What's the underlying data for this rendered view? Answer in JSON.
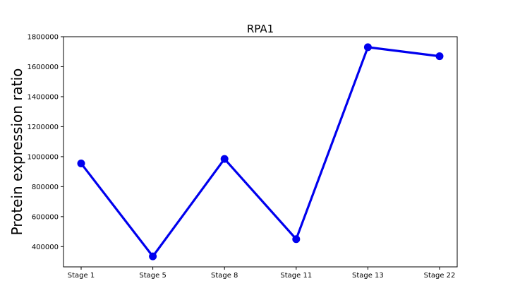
{
  "chart_data": {
    "type": "line",
    "title": "RPA1",
    "xlabel": "",
    "ylabel": "Protein expression ratio",
    "categories": [
      "Stage 1",
      "Stage 5",
      "Stage 8",
      "Stage 11",
      "Stage 13",
      "Stage 22"
    ],
    "series": [
      {
        "values": [
          955000,
          335000,
          985000,
          450000,
          1730000,
          1670000
        ],
        "color": "#0000ee"
      }
    ],
    "ylim": [
      265000,
      1800000
    ],
    "yticks": [
      400000,
      600000,
      800000,
      1000000,
      1200000,
      1400000,
      1600000,
      1800000
    ],
    "grid": false,
    "legend": false
  }
}
